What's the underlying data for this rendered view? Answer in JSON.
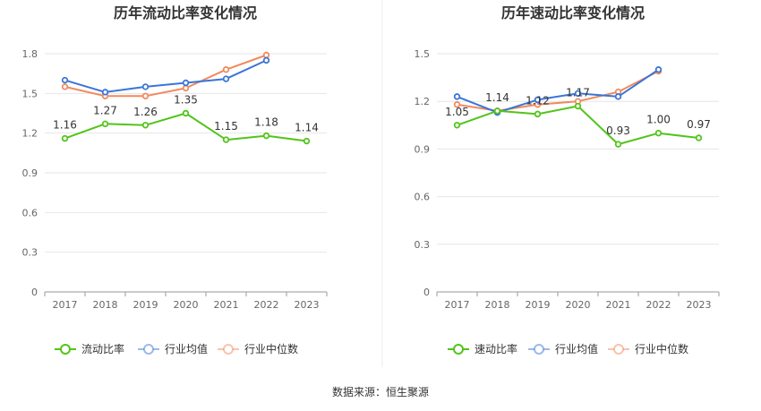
{
  "source_note": "数据来源：恒生聚源",
  "chart_data": [
    {
      "type": "line",
      "title": "历年流动比率变化情况",
      "x": [
        "2017",
        "2018",
        "2019",
        "2020",
        "2021",
        "2022",
        "2023"
      ],
      "ylim": [
        0,
        1.8
      ],
      "yticks": [
        "0",
        "0.3",
        "0.6",
        "0.9",
        "1.2",
        "1.5",
        "1.8"
      ],
      "grid": true,
      "legend_position": "bottom",
      "series": [
        {
          "name": "流动比率",
          "color": "#52c41a",
          "values": [
            1.16,
            1.27,
            1.26,
            1.35,
            1.15,
            1.18,
            1.14
          ],
          "labels": [
            "1.16",
            "1.27",
            "1.26",
            "1.35",
            "1.15",
            "1.18",
            "1.14"
          ]
        },
        {
          "name": "行业均值",
          "color": "#3a75d8",
          "values": [
            1.6,
            1.51,
            1.55,
            1.58,
            1.61,
            1.75,
            null
          ]
        },
        {
          "name": "行业中位数",
          "color": "#f08a5d",
          "values": [
            1.55,
            1.48,
            1.48,
            1.54,
            1.68,
            1.79,
            null
          ]
        }
      ]
    },
    {
      "type": "line",
      "title": "历年速动比率变化情况",
      "x": [
        "2017",
        "2018",
        "2019",
        "2020",
        "2021",
        "2022",
        "2023"
      ],
      "ylim": [
        0,
        1.5
      ],
      "yticks": [
        "0",
        "0.3",
        "0.6",
        "0.9",
        "1.2",
        "1.5"
      ],
      "grid": true,
      "legend_position": "bottom",
      "series": [
        {
          "name": "速动比率",
          "color": "#52c41a",
          "values": [
            1.05,
            1.14,
            1.12,
            1.17,
            0.93,
            1.0,
            0.97
          ],
          "labels": [
            "1.05",
            "1.14",
            "1.12",
            "1.17",
            "0.93",
            "1.00",
            "0.97"
          ]
        },
        {
          "name": "行业均值",
          "color": "#3a75d8",
          "values": [
            1.23,
            1.13,
            1.21,
            1.25,
            1.23,
            1.4,
            null
          ]
        },
        {
          "name": "行业中位数",
          "color": "#f08a5d",
          "values": [
            1.18,
            1.14,
            1.18,
            1.2,
            1.26,
            1.39,
            null
          ]
        }
      ]
    }
  ]
}
